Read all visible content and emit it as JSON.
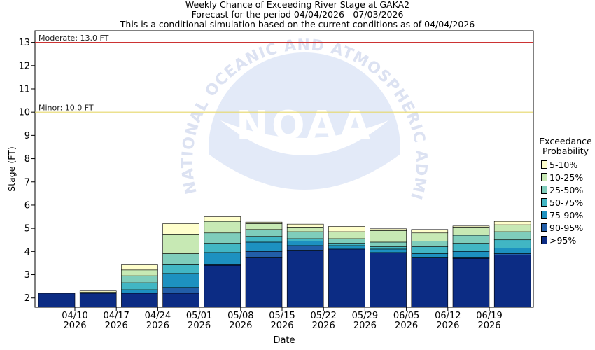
{
  "titles": {
    "line1": "Weekly Chance of Exceeding River Stage at GAKA2",
    "line2": "Forecast for the period 04/04/2026 - 07/03/2026",
    "line3": "This is a conditional simulation based on the current conditions as of 04/04/2026"
  },
  "watermark": "NATIONAL OCEANIC AND ATMOSPHERIC ADMINISTRATION",
  "logo_text": "NOAA",
  "legend": {
    "title_line1": "Exceedance",
    "title_line2": "Probability",
    "items": [
      {
        "label": "5-10%",
        "color": "#ffffcc"
      },
      {
        "label": "10-25%",
        "color": "#c7e9b4"
      },
      {
        "label": "25-50%",
        "color": "#7fcdbb"
      },
      {
        "label": "50-75%",
        "color": "#41b6c4"
      },
      {
        "label": "75-90%",
        "color": "#1d91c0"
      },
      {
        "label": "90-95%",
        "color": "#225ea8"
      },
      {
        "label": ">95%",
        "color": "#0c2c84"
      }
    ]
  },
  "chart_data": {
    "type": "bar",
    "stacked": true,
    "xlabel": "Date",
    "ylabel": "Stage (FT)",
    "ylim": [
      1.6,
      13.5
    ],
    "yticks": [
      2,
      3,
      4,
      5,
      6,
      7,
      8,
      9,
      10,
      11,
      12,
      13
    ],
    "grid": false,
    "legend_position": "right",
    "x_tick_labels": [
      [
        "04/10",
        "2026"
      ],
      [
        "04/17",
        "2026"
      ],
      [
        "04/24",
        "2026"
      ],
      [
        "05/01",
        "2026"
      ],
      [
        "05/08",
        "2026"
      ],
      [
        "05/15",
        "2026"
      ],
      [
        "05/22",
        "2026"
      ],
      [
        "05/29",
        "2026"
      ],
      [
        "06/05",
        "2026"
      ],
      [
        "06/12",
        "2026"
      ],
      [
        "06/19",
        "2026"
      ]
    ],
    "thresholds": [
      {
        "label": "Moderate: 13.0 FT",
        "value": 13.0,
        "color": "#cc3333"
      },
      {
        "label": "Minor: 10.0 FT",
        "value": 10.0,
        "color": "#e6d76a"
      }
    ],
    "series_names": [
      "5-10%",
      "10-25%",
      "25-50%",
      "50-75%",
      "75-90%",
      "90-95%",
      ">95%"
    ],
    "bars": [
      {
        "min": 1.6,
        "levels": [
          2.2,
          2.2,
          2.2,
          2.2,
          2.2,
          2.2,
          2.2
        ]
      },
      {
        "min": 1.6,
        "levels": [
          2.3,
          2.25,
          2.2,
          2.2,
          2.2,
          2.2,
          2.2
        ]
      },
      {
        "min": 1.6,
        "levels": [
          3.45,
          3.2,
          2.95,
          2.65,
          2.35,
          2.2,
          2.2
        ]
      },
      {
        "min": 1.6,
        "levels": [
          5.2,
          4.75,
          3.9,
          3.45,
          3.05,
          2.45,
          2.2
        ]
      },
      {
        "min": 1.6,
        "levels": [
          5.5,
          5.3,
          4.8,
          4.35,
          3.95,
          3.45,
          3.4
        ]
      },
      {
        "min": 1.6,
        "levels": [
          5.27,
          5.2,
          4.95,
          4.65,
          4.4,
          4.0,
          3.75
        ]
      },
      {
        "min": 1.6,
        "levels": [
          5.18,
          5.05,
          4.85,
          4.55,
          4.45,
          4.25,
          4.05
        ]
      },
      {
        "min": 1.6,
        "levels": [
          5.08,
          4.85,
          4.55,
          4.35,
          4.25,
          4.1,
          4.1
        ]
      },
      {
        "min": 1.6,
        "levels": [
          4.98,
          4.9,
          4.4,
          4.2,
          4.1,
          3.95,
          3.95
        ]
      },
      {
        "min": 1.6,
        "levels": [
          4.95,
          4.8,
          4.45,
          4.2,
          3.9,
          3.75,
          3.75
        ]
      },
      {
        "min": 1.6,
        "levels": [
          5.1,
          5.05,
          4.7,
          4.35,
          4.0,
          3.75,
          3.7
        ]
      },
      {
        "min": 1.6,
        "levels": [
          5.3,
          5.15,
          4.85,
          4.5,
          4.15,
          3.9,
          3.85
        ]
      }
    ]
  }
}
